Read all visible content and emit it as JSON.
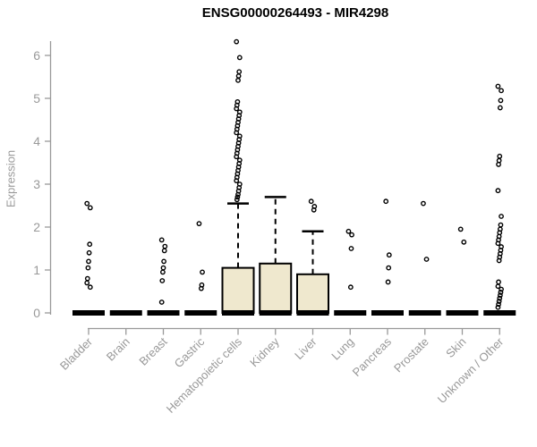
{
  "chart_data": {
    "type": "boxplot",
    "title": "ENSG00000264493 - MIR4298",
    "ylabel": "Expression",
    "ylim": [
      0,
      6.4
    ],
    "yticks": [
      0,
      1,
      2,
      3,
      4,
      5,
      6
    ],
    "grid": false,
    "legend": false,
    "colors": {
      "box_fill": "#EFE8CE",
      "box_border": "#000000",
      "median": "#000000",
      "outlier": "#000000",
      "axis": "#999999",
      "tick_label": "#999999",
      "title": "#000000"
    },
    "categories": [
      "Bladder",
      "Brain",
      "Breast",
      "Gastric",
      "Hematopoietic cells",
      "Kidney",
      "Liver",
      "Lung",
      "Pancreas",
      "Prostate",
      "Skin",
      "Unknown / Other"
    ],
    "boxes": [
      {
        "category": "Bladder",
        "q1": 0,
        "median": 0,
        "q3": 0,
        "whisker_low": 0,
        "whisker_high": 0,
        "outliers": [
          2.55,
          2.45,
          1.6,
          1.4,
          1.2,
          1.05,
          0.8,
          0.7,
          0.6
        ]
      },
      {
        "category": "Brain",
        "q1": 0,
        "median": 0,
        "q3": 0,
        "whisker_low": 0,
        "whisker_high": 0,
        "outliers": []
      },
      {
        "category": "Breast",
        "q1": 0,
        "median": 0,
        "q3": 0,
        "whisker_low": 0,
        "whisker_high": 0,
        "outliers": [
          1.7,
          1.55,
          1.45,
          1.2,
          1.05,
          0.95,
          0.75,
          0.25
        ]
      },
      {
        "category": "Gastric",
        "q1": 0,
        "median": 0,
        "q3": 0,
        "whisker_low": 0,
        "whisker_high": 0,
        "outliers": [
          2.08,
          0.95,
          0.65,
          0.57
        ]
      },
      {
        "category": "Hematopoietic cells",
        "q1": 0,
        "median": 0,
        "q3": 1.05,
        "whisker_low": 0,
        "whisker_high": 2.55,
        "outliers": [
          6.32,
          5.95,
          5.62,
          5.52,
          5.42,
          4.92,
          4.84,
          4.76,
          4.68,
          4.6,
          4.52,
          4.44,
          4.36,
          4.28,
          4.2,
          4.12,
          4.04,
          3.96,
          3.88,
          3.8,
          3.72,
          3.64,
          3.56,
          3.48,
          3.4,
          3.32,
          3.24,
          3.16,
          3.08,
          3.0,
          2.92,
          2.84,
          2.76,
          2.7,
          2.64
        ]
      },
      {
        "category": "Kidney",
        "q1": 0,
        "median": 0,
        "q3": 1.15,
        "whisker_low": 0,
        "whisker_high": 2.7,
        "outliers": []
      },
      {
        "category": "Liver",
        "q1": 0,
        "median": 0,
        "q3": 0.9,
        "whisker_low": 0,
        "whisker_high": 1.9,
        "outliers": [
          2.6,
          2.48,
          2.4
        ]
      },
      {
        "category": "Lung",
        "q1": 0,
        "median": 0,
        "q3": 0,
        "whisker_low": 0,
        "whisker_high": 0,
        "outliers": [
          1.9,
          1.82,
          1.5,
          0.6
        ]
      },
      {
        "category": "Pancreas",
        "q1": 0,
        "median": 0,
        "q3": 0,
        "whisker_low": 0,
        "whisker_high": 0,
        "outliers": [
          2.6,
          1.35,
          1.05,
          0.72
        ]
      },
      {
        "category": "Prostate",
        "q1": 0,
        "median": 0,
        "q3": 0,
        "whisker_low": 0,
        "whisker_high": 0,
        "outliers": [
          2.55,
          1.25
        ]
      },
      {
        "category": "Skin",
        "q1": 0,
        "median": 0,
        "q3": 0,
        "whisker_low": 0,
        "whisker_high": 0,
        "outliers": [
          1.95,
          1.65
        ]
      },
      {
        "category": "Unknown / Other",
        "q1": 0,
        "median": 0,
        "q3": 0,
        "whisker_low": 0,
        "whisker_high": 0,
        "outliers": [
          5.28,
          5.18,
          4.95,
          4.78,
          3.65,
          3.55,
          3.46,
          2.85,
          2.25,
          2.05,
          1.95,
          1.87,
          1.78,
          1.7,
          1.62,
          1.54,
          1.46,
          1.38,
          1.3,
          1.22,
          0.72,
          0.62,
          0.55,
          0.48,
          0.41,
          0.34,
          0.27,
          0.2,
          0.13
        ]
      }
    ]
  }
}
